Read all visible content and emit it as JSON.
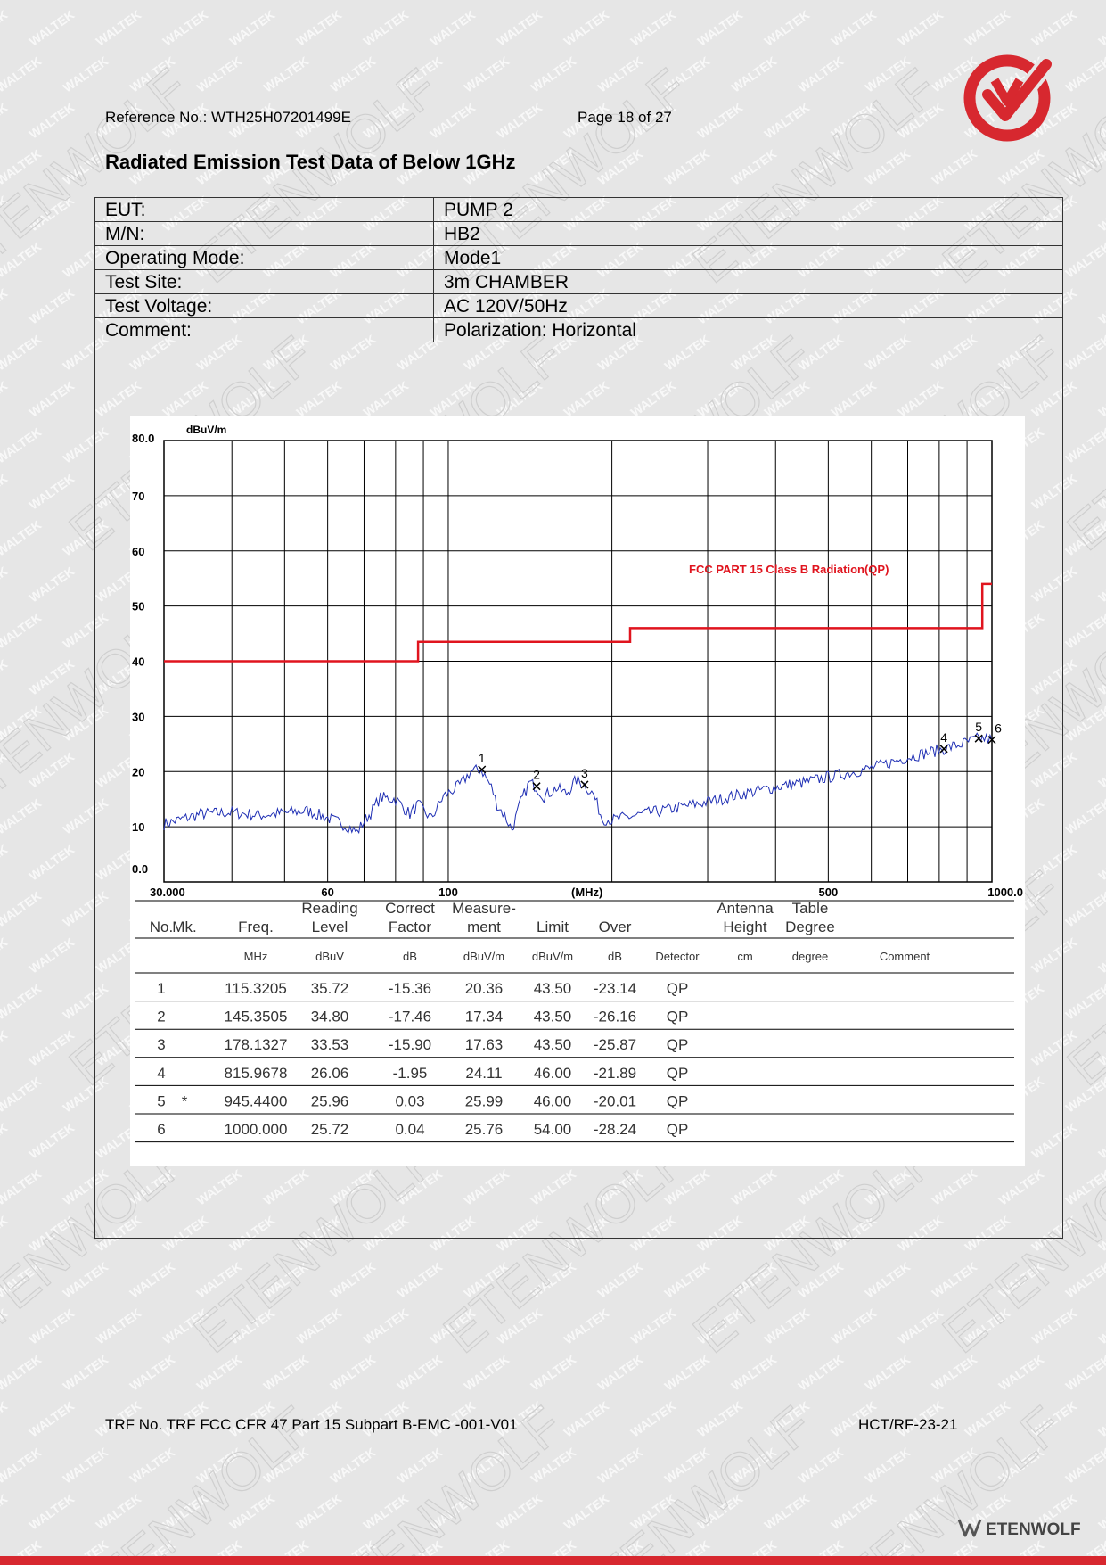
{
  "header": {
    "reference": "Reference No.: WTH25H07201499E",
    "page": "Page 18 of 27"
  },
  "title": "Radiated Emission Test Data of Below 1GHz",
  "info_rows": [
    {
      "label": "EUT:",
      "value": "PUMP 2"
    },
    {
      "label": "M/N:",
      "value": "HB2"
    },
    {
      "label": "Operating Mode:",
      "value": "Mode1"
    },
    {
      "label": "Test Site:",
      "value": "3m CHAMBER"
    },
    {
      "label": "Test Voltage:",
      "value": "AC 120V/50Hz"
    },
    {
      "label": "Comment:",
      "value": "Polarization: Horizontal"
    }
  ],
  "chart_data": {
    "type": "line",
    "ylabel": "dBuV/m",
    "xlabel": "(MHz)",
    "xscale": "log",
    "xlim": [
      30,
      1000
    ],
    "ylim": [
      0,
      80
    ],
    "y_tick_labels": [
      "80.0",
      "70",
      "60",
      "50",
      "40",
      "30",
      "20",
      "10",
      "0.0"
    ],
    "x_tick_labels": [
      {
        "x": 30,
        "label": "30.000"
      },
      {
        "x": 60,
        "label": "60"
      },
      {
        "x": 100,
        "label": "100"
      },
      {
        "x": 180,
        "label": "(MHz)"
      },
      {
        "x": 500,
        "label": "500"
      },
      {
        "x": 1000,
        "label": "1000.0"
      }
    ],
    "grid": true,
    "limit_label": "FCC PART 15 Class B Radiation(QP)",
    "limit_color": "#e0141e",
    "trace_color": "#1f2fb4",
    "limit_line": [
      {
        "x": 30,
        "y": 40
      },
      {
        "x": 88,
        "y": 40
      },
      {
        "x": 88,
        "y": 43.5
      },
      {
        "x": 216,
        "y": 43.5
      },
      {
        "x": 216,
        "y": 46
      },
      {
        "x": 960,
        "y": 46
      },
      {
        "x": 960,
        "y": 54
      },
      {
        "x": 1000,
        "y": 54
      }
    ],
    "trace_keypoints": [
      [
        30,
        10.5
      ],
      [
        35,
        12.3
      ],
      [
        40,
        12.6
      ],
      [
        45,
        12.1
      ],
      [
        50,
        12.5
      ],
      [
        55,
        12.9
      ],
      [
        60,
        11.6
      ],
      [
        65,
        10.2
      ],
      [
        68,
        9.0
      ],
      [
        70,
        11.0
      ],
      [
        72,
        12.5
      ],
      [
        75,
        15.3
      ],
      [
        80,
        15.0
      ],
      [
        85,
        12.3
      ],
      [
        88,
        14.0
      ],
      [
        93,
        11.5
      ],
      [
        98,
        15.5
      ],
      [
        105,
        17.5
      ],
      [
        110,
        20.0
      ],
      [
        115,
        20.4
      ],
      [
        120,
        17.2
      ],
      [
        123,
        14.0
      ],
      [
        127,
        12.0
      ],
      [
        131,
        9.5
      ],
      [
        136,
        14.5
      ],
      [
        141,
        18.0
      ],
      [
        145,
        17.3
      ],
      [
        150,
        15.5
      ],
      [
        158,
        17.0
      ],
      [
        165,
        16.0
      ],
      [
        172,
        18.5
      ],
      [
        178,
        17.6
      ],
      [
        185,
        15.8
      ],
      [
        192,
        11.5
      ],
      [
        200,
        11.2
      ],
      [
        220,
        12.0
      ],
      [
        250,
        13.0
      ],
      [
        300,
        14.5
      ],
      [
        350,
        16.0
      ],
      [
        400,
        17.2
      ],
      [
        450,
        18.0
      ],
      [
        500,
        19.0
      ],
      [
        600,
        20.6
      ],
      [
        700,
        22.6
      ],
      [
        815.97,
        24.1
      ],
      [
        880,
        25.0
      ],
      [
        945.44,
        26.0
      ],
      [
        1000,
        25.8
      ]
    ],
    "markers": [
      {
        "label": "1",
        "x": 115.3205,
        "y": 20.36
      },
      {
        "label": "2",
        "x": 145.3505,
        "y": 17.34
      },
      {
        "label": "3",
        "x": 178.1327,
        "y": 17.63
      },
      {
        "label": "4",
        "x": 815.9678,
        "y": 24.11
      },
      {
        "label": "5",
        "x": 945.44,
        "y": 25.99
      },
      {
        "label": "6",
        "x": 1000.0,
        "y": 25.76
      }
    ]
  },
  "table": {
    "headers": [
      {
        "col": "no",
        "l1": "",
        "l2": "No."
      },
      {
        "col": "mk",
        "l1": "",
        "l2": "Mk."
      },
      {
        "col": "freq",
        "l1": "",
        "l2": "Freq."
      },
      {
        "col": "reading",
        "l1": "Reading",
        "l2": "Level"
      },
      {
        "col": "correct",
        "l1": "Correct",
        "l2": "Factor"
      },
      {
        "col": "measure",
        "l1": "Measure-",
        "l2": "ment"
      },
      {
        "col": "limit",
        "l1": "",
        "l2": "Limit"
      },
      {
        "col": "over",
        "l1": "",
        "l2": "Over"
      },
      {
        "col": "detector",
        "l1": "",
        "l2": ""
      },
      {
        "col": "antenna",
        "l1": "Antenna",
        "l2": "Height"
      },
      {
        "col": "table",
        "l1": "Table",
        "l2": "Degree"
      },
      {
        "col": "comment",
        "l1": "",
        "l2": ""
      }
    ],
    "units": [
      "",
      "",
      "MHz",
      "dBuV",
      "dB",
      "dBuV/m",
      "dBuV/m",
      "dB",
      "Detector",
      "cm",
      "degree",
      "Comment"
    ],
    "rows": [
      [
        "1",
        "",
        "115.3205",
        "35.72",
        "-15.36",
        "20.36",
        "43.50",
        "-23.14",
        "QP",
        "",
        "",
        ""
      ],
      [
        "2",
        "",
        "145.3505",
        "34.80",
        "-17.46",
        "17.34",
        "43.50",
        "-26.16",
        "QP",
        "",
        "",
        ""
      ],
      [
        "3",
        "",
        "178.1327",
        "33.53",
        "-15.90",
        "17.63",
        "43.50",
        "-25.87",
        "QP",
        "",
        "",
        ""
      ],
      [
        "4",
        "",
        "815.9678",
        "26.06",
        "-1.95",
        "24.11",
        "46.00",
        "-21.89",
        "QP",
        "",
        "",
        ""
      ],
      [
        "5",
        "*",
        "945.4400",
        "25.96",
        "0.03",
        "25.99",
        "46.00",
        "-20.01",
        "QP",
        "",
        "",
        ""
      ],
      [
        "6",
        "",
        "1000.000",
        "25.72",
        "0.04",
        "25.76",
        "54.00",
        "-28.24",
        "QP",
        "",
        "",
        ""
      ]
    ]
  },
  "footer": {
    "trf": "TRF No. TRF FCC CFR 47 Part 15 Subpart B-EMC -001-V01",
    "code": "HCT/RF-23-21"
  },
  "watermarks": {
    "small": "WALTEK",
    "large": "ETENWOLF"
  },
  "brand": {
    "name": "ETENWOLF",
    "accent": "#d7282f"
  }
}
